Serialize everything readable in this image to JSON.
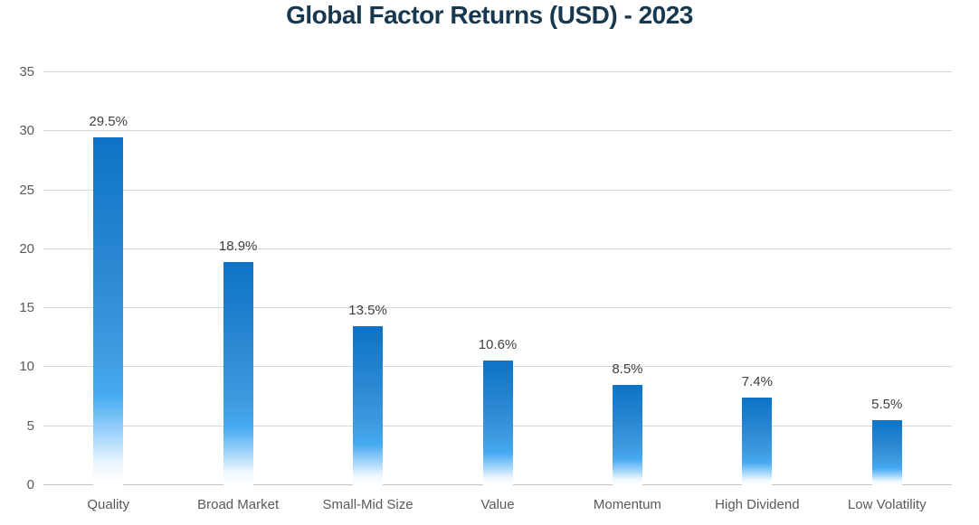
{
  "chart_data": {
    "type": "bar",
    "title": "Global Factor Returns (USD) - 2023",
    "categories": [
      "Quality",
      "Broad Market",
      "Small-Mid Size",
      "Value",
      "Momentum",
      "High Dividend",
      "Low Volatility"
    ],
    "values": [
      29.5,
      18.9,
      13.5,
      10.6,
      8.5,
      7.4,
      5.5
    ],
    "data_labels": [
      "29.5%",
      "18.9%",
      "13.5%",
      "10.6%",
      "8.5%",
      "7.4%",
      "5.5%"
    ],
    "yticks": [
      0,
      5,
      10,
      15,
      20,
      25,
      30,
      35
    ],
    "ylim": [
      0,
      35
    ],
    "xlabel": "",
    "ylabel": "",
    "grid": "horizontal",
    "legend": "none",
    "colors": {
      "bar_gradient_top": "#0d73c6",
      "bar_gradient_mid": "#46a9f1",
      "bar_gradient_bottom": "#ffffff",
      "title": "#17384e",
      "data_label": "#404040",
      "axis_tick": "#595959",
      "gridline": "#d9d9d9",
      "axis_line": "#c3c3c3",
      "background": "#ffffff"
    }
  }
}
